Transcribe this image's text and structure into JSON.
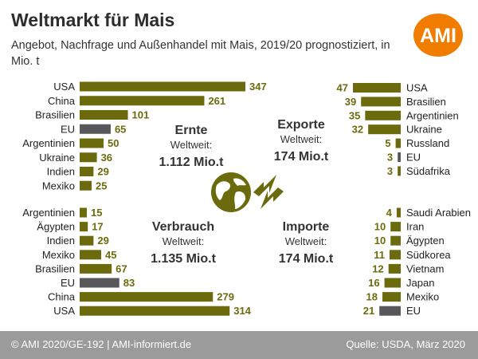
{
  "title": "Weltmarkt für Mais",
  "subtitle": "Angebot, Nachfrage und Außenhandel mit Mais, 2019/20 prognostiziert, in Mio. t",
  "logo": {
    "text": "AMI",
    "color": "#f07d00"
  },
  "footer": {
    "left": "© AMI 2020/GE-192 | AMI-informiert.de",
    "right": "Quelle: USDA, März 2020"
  },
  "colors": {
    "bar": "#6b6b0e",
    "highlight": "#58585a",
    "value_text": "#6b6b0e",
    "icon": "#6b6b0e"
  },
  "chart_data": [
    {
      "type": "bar",
      "label": "Ernte",
      "sublabel": "Weltweit:",
      "total": "1.112 Mio.t",
      "categories": [
        "USA",
        "China",
        "Brasilien",
        "EU",
        "Argentinien",
        "Ukraine",
        "Indien",
        "Mexiko"
      ],
      "values": [
        347,
        261,
        101,
        65,
        50,
        36,
        29,
        25
      ],
      "highlight": "EU"
    },
    {
      "type": "bar",
      "label": "Verbrauch",
      "sublabel": "Weltweit:",
      "total": "1.135 Mio.t",
      "categories": [
        "Argentinien",
        "Ägypten",
        "Indien",
        "Mexiko",
        "Brasilien",
        "EU",
        "China",
        "USA"
      ],
      "values": [
        15,
        17,
        29,
        45,
        67,
        83,
        279,
        314
      ],
      "highlight": "EU"
    },
    {
      "type": "bar",
      "label": "Exporte",
      "sublabel": "Weltweit:",
      "total": "174 Mio.t",
      "categories": [
        "USA",
        "Brasilien",
        "Argentinien",
        "Ukraine",
        "Russland",
        "EU",
        "Südafrika"
      ],
      "values": [
        47,
        39,
        35,
        32,
        5,
        3,
        3
      ],
      "highlight": "EU"
    },
    {
      "type": "bar",
      "label": "Importe",
      "sublabel": "Weltweit:",
      "total": "174 Mio.t",
      "categories": [
        "Saudi Arabien",
        "Iran",
        "Ägypten",
        "Südkorea",
        "Vietnam",
        "Japan",
        "Mexiko",
        "EU"
      ],
      "values": [
        4,
        10,
        10,
        11,
        12,
        16,
        18,
        21
      ],
      "highlight": "EU"
    }
  ]
}
